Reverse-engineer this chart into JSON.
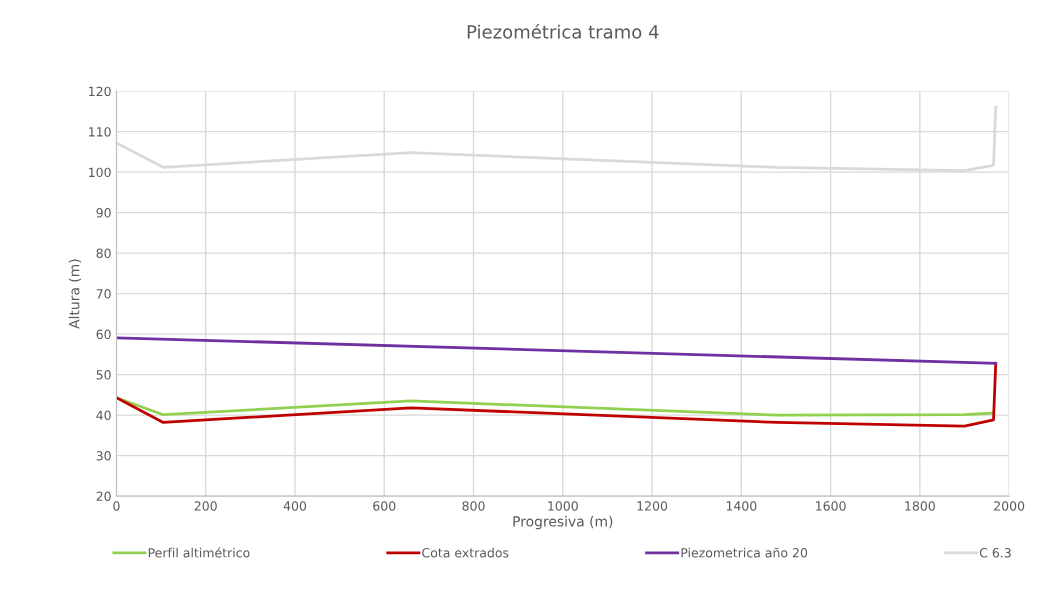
{
  "chart_data": {
    "type": "line",
    "title": "Piezométrica tramo 4",
    "xlabel": "Progresiva (m)",
    "ylabel": "Altura (m)",
    "xlim": [
      0,
      2000
    ],
    "xticks": [
      0,
      200,
      400,
      600,
      800,
      1000,
      1200,
      1400,
      1600,
      1800,
      2000
    ],
    "ylim": [
      20,
      120
    ],
    "yticks": [
      20,
      30,
      40,
      50,
      60,
      70,
      80,
      90,
      100,
      110,
      120
    ],
    "grid": true,
    "legend": "bottom",
    "marker": "none",
    "line_style": "solid",
    "series": [
      {
        "name": "Perfil altimétrico",
        "color": "#92d050",
        "x": [
          0,
          105,
          660,
          1480,
          1900,
          1965
        ],
        "values": [
          44.3,
          40.1,
          43.5,
          40.0,
          40.1,
          40.5
        ]
      },
      {
        "name": "Cota extrados",
        "color": "#c00000",
        "x": [
          0,
          105,
          660,
          1480,
          1900,
          1965,
          1970
        ],
        "values": [
          44.3,
          38.2,
          41.8,
          38.2,
          37.3,
          38.8,
          52.8
        ]
      },
      {
        "name": "Piezometrica año 20",
        "color": "#7030a0",
        "x": [
          0,
          1970
        ],
        "values": [
          59.1,
          52.8
        ]
      },
      {
        "name": "C 6.3",
        "color": "#d9d9d9",
        "x": [
          0,
          105,
          660,
          1480,
          1900,
          1965,
          1970
        ],
        "values": [
          107.2,
          101.2,
          104.8,
          101.2,
          100.4,
          101.7,
          116.0
        ]
      }
    ]
  }
}
